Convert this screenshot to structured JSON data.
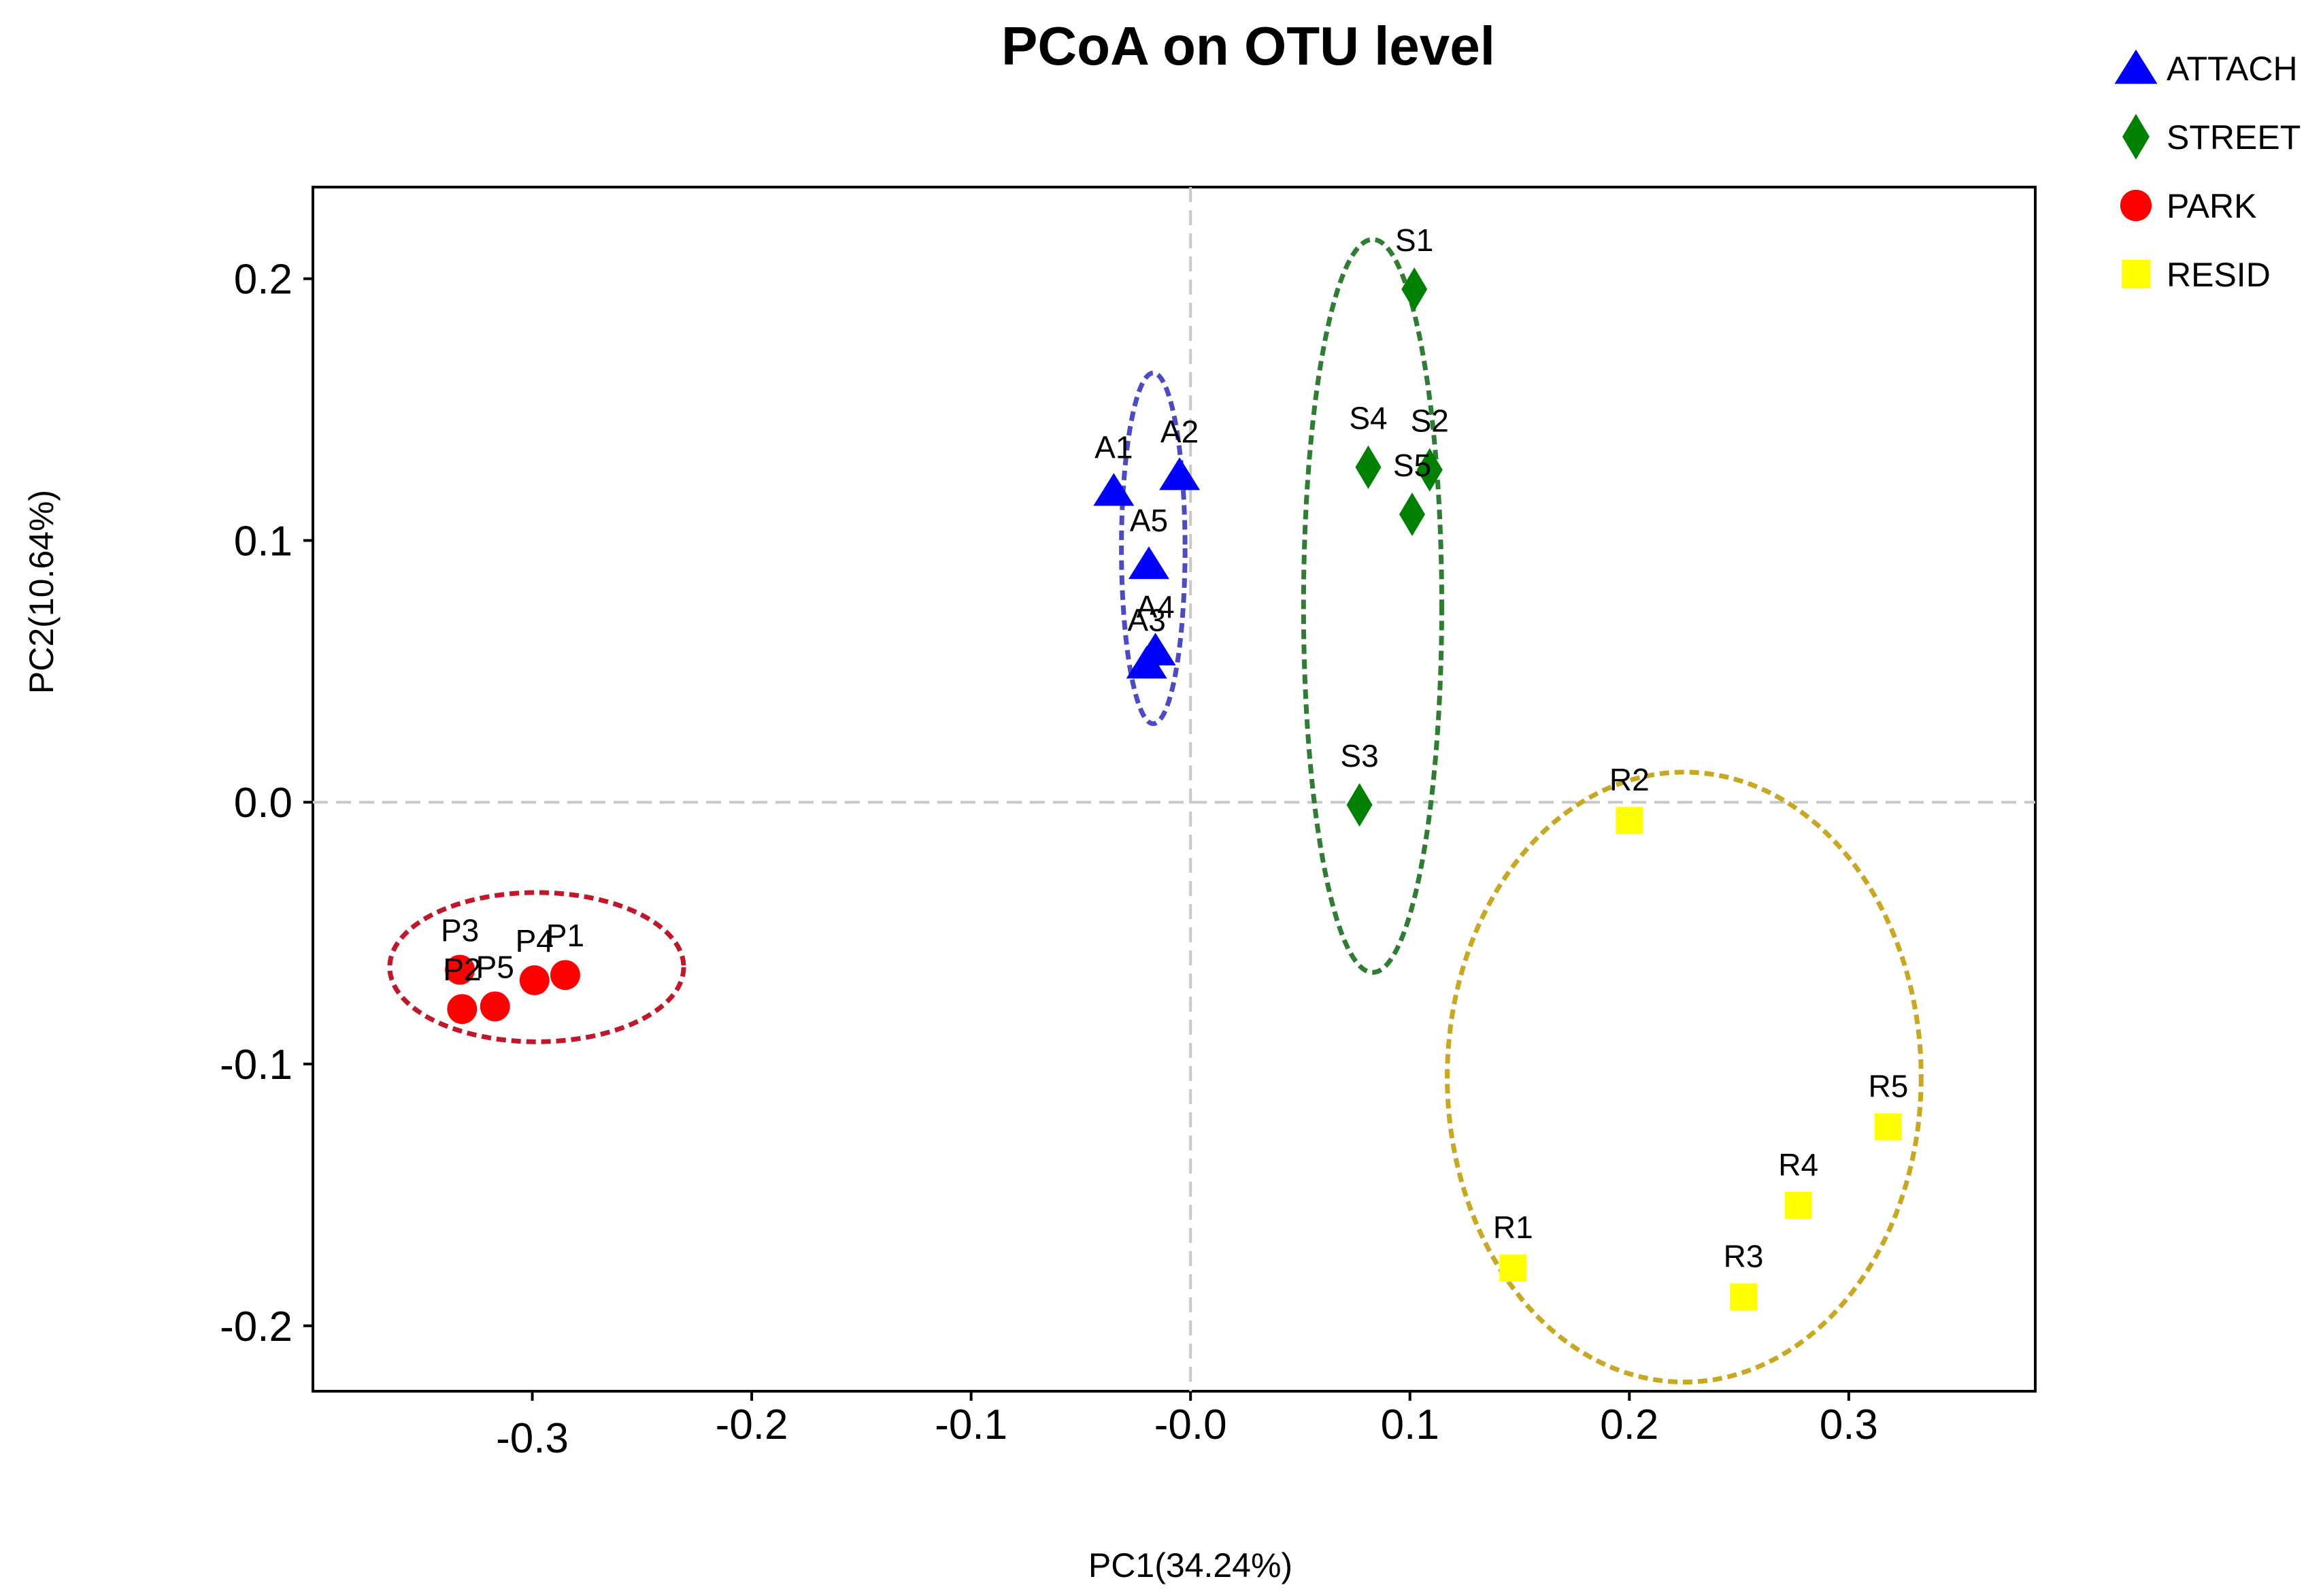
{
  "chart_data": {
    "type": "scatter",
    "title": "PCoA on OTU level",
    "xlabel": "PC1(34.24%)",
    "ylabel": "PC2(10.64%)",
    "xlim": [
      -0.4,
      0.385
    ],
    "ylim": [
      -0.225,
      0.235
    ],
    "xticks": [
      -0.3,
      -0.2,
      -0.1,
      0.0,
      0.1,
      0.2,
      0.3
    ],
    "xtick_labels": [
      "-0.3",
      "-0.2",
      "-0.1",
      "-0.0",
      "0.1",
      "0.2",
      "0.3"
    ],
    "yticks": [
      -0.2,
      -0.1,
      0.0,
      0.1,
      0.2
    ],
    "ytick_labels": [
      "-0.2",
      "-0.1",
      "0.0",
      "0.1",
      "0.2"
    ],
    "grid": false,
    "reference_lines": {
      "x": 0.0,
      "y": 0.0,
      "style": "dashed"
    },
    "legend_position": "top-right, outside plot",
    "series": [
      {
        "name": "ATTACH",
        "marker": "triangle",
        "color": "#0000FF",
        "ellipse_color": "#4B4BC8",
        "ellipse": {
          "cx": -0.017,
          "cy": 0.097,
          "rx": 0.0145,
          "ry": 0.067
        },
        "points": [
          {
            "label": "A1",
            "x": -0.035,
            "y": 0.119
          },
          {
            "label": "A2",
            "x": -0.005,
            "y": 0.125
          },
          {
            "label": "A5",
            "x": -0.019,
            "y": 0.091
          },
          {
            "label": "A4",
            "x": -0.016,
            "y": 0.058
          },
          {
            "label": "A3",
            "x": -0.02,
            "y": 0.053
          }
        ]
      },
      {
        "name": "STREET",
        "marker": "diamond",
        "color": "#008000",
        "ellipse_color": "#2E7D32",
        "ellipse": {
          "cx": 0.083,
          "cy": 0.075,
          "rx": 0.0315,
          "ry": 0.14
        },
        "points": [
          {
            "label": "S1",
            "x": 0.102,
            "y": 0.196
          },
          {
            "label": "S4",
            "x": 0.081,
            "y": 0.128
          },
          {
            "label": "S2",
            "x": 0.109,
            "y": 0.127
          },
          {
            "label": "S5",
            "x": 0.101,
            "y": 0.11
          },
          {
            "label": "S3",
            "x": 0.077,
            "y": -0.001
          }
        ]
      },
      {
        "name": "PARK",
        "marker": "circle",
        "color": "#FF0000",
        "ellipse_color": "#C0182A",
        "ellipse": {
          "cx": -0.298,
          "cy": -0.063,
          "rx": 0.067,
          "ry": 0.0285
        },
        "points": [
          {
            "label": "P3",
            "x": -0.333,
            "y": -0.064
          },
          {
            "label": "P2",
            "x": -0.332,
            "y": -0.079
          },
          {
            "label": "P5",
            "x": -0.317,
            "y": -0.078
          },
          {
            "label": "P4",
            "x": -0.299,
            "y": -0.068
          },
          {
            "label": "P1",
            "x": -0.285,
            "y": -0.066
          }
        ]
      },
      {
        "name": "RESID",
        "marker": "square",
        "color": "#FFFF00",
        "ellipse_color": "#C8A820",
        "ellipse": {
          "cx": 0.225,
          "cy": -0.105,
          "rx": 0.108,
          "ry": 0.1165
        },
        "points": [
          {
            "label": "R2",
            "x": 0.2,
            "y": -0.007
          },
          {
            "label": "R5",
            "x": 0.318,
            "y": -0.124
          },
          {
            "label": "R4",
            "x": 0.277,
            "y": -0.154
          },
          {
            "label": "R1",
            "x": 0.147,
            "y": -0.178
          },
          {
            "label": "R3",
            "x": 0.252,
            "y": -0.189
          }
        ]
      }
    ]
  }
}
